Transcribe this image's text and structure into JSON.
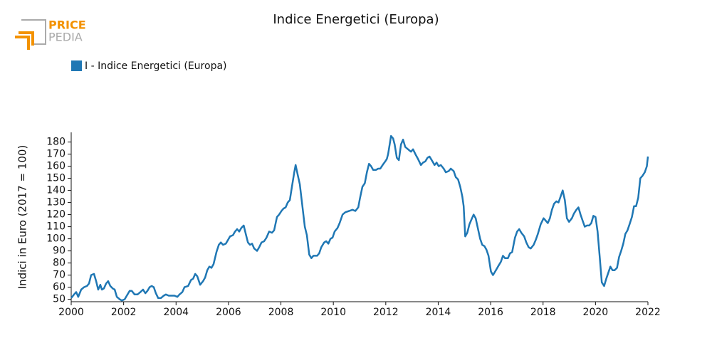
{
  "logo": {
    "top": "PRICE",
    "bottom": "PEDIA"
  },
  "chart_data": {
    "type": "line",
    "title": "Indice Energetici (Europa)",
    "y_label": "Indici in Euro (2017 = 100)",
    "legend": "top-left",
    "series": [
      {
        "name": "I - Indice Energetici (Europa)",
        "color": "#1f77b4",
        "x": [
          2000,
          2000.11,
          2000.19,
          2000.27,
          2000.38,
          2000.49,
          2000.6,
          2000.68,
          2000.76,
          2000.87,
          2000.95,
          2001.03,
          2001.11,
          2001.17,
          2001.25,
          2001.33,
          2001.41,
          2001.49,
          2001.58,
          2001.66,
          2001.74,
          2001.85,
          2001.93,
          2002.04,
          2002.12,
          2002.23,
          2002.31,
          2002.42,
          2002.53,
          2002.64,
          2002.74,
          2002.83,
          2002.91,
          2002.99,
          2003.07,
          2003.15,
          2003.23,
          2003.32,
          2003.42,
          2003.53,
          2003.61,
          2003.72,
          2003.83,
          2003.94,
          2004.05,
          2004.13,
          2004.24,
          2004.32,
          2004.46,
          2004.57,
          2004.65,
          2004.73,
          2004.81,
          2004.92,
          2005.03,
          2005.11,
          2005.19,
          2005.27,
          2005.35,
          2005.43,
          2005.54,
          2005.63,
          2005.71,
          2005.79,
          2005.9,
          2005.98,
          2006.06,
          2006.17,
          2006.25,
          2006.33,
          2006.41,
          2006.49,
          2006.58,
          2006.66,
          2006.74,
          2006.82,
          2006.9,
          2006.98,
          2007.09,
          2007.17,
          2007.26,
          2007.36,
          2007.45,
          2007.55,
          2007.66,
          2007.74,
          2007.85,
          2007.93,
          2008.02,
          2008.1,
          2008.18,
          2008.26,
          2008.34,
          2008.42,
          2008.51,
          2008.56,
          2008.64,
          2008.72,
          2008.83,
          2008.91,
          2008.99,
          2009.08,
          2009.16,
          2009.24,
          2009.38,
          2009.46,
          2009.54,
          2009.65,
          2009.73,
          2009.81,
          2009.89,
          2009.97,
          2010.05,
          2010.16,
          2010.24,
          2010.35,
          2010.46,
          2010.6,
          2010.73,
          2010.84,
          2010.95,
          2011.01,
          2011.11,
          2011.2,
          2011.28,
          2011.36,
          2011.44,
          2011.52,
          2011.63,
          2011.71,
          2011.79,
          2011.88,
          2011.98,
          2012.04,
          2012.09,
          2012.15,
          2012.2,
          2012.28,
          2012.34,
          2012.42,
          2012.5,
          2012.58,
          2012.66,
          2012.74,
          2012.85,
          2012.96,
          2013.04,
          2013.13,
          2013.23,
          2013.34,
          2013.42,
          2013.51,
          2013.59,
          2013.67,
          2013.78,
          2013.86,
          2013.94,
          2014.02,
          2014.1,
          2014.21,
          2014.29,
          2014.4,
          2014.48,
          2014.59,
          2014.67,
          2014.76,
          2014.84,
          2014.92,
          2014.97,
          2015.03,
          2015.11,
          2015.19,
          2015.27,
          2015.35,
          2015.43,
          2015.52,
          2015.6,
          2015.68,
          2015.76,
          2015.84,
          2015.92,
          2016.01,
          2016.09,
          2016.2,
          2016.28,
          2016.39,
          2016.47,
          2016.55,
          2016.66,
          2016.74,
          2016.82,
          2016.93,
          2017.01,
          2017.09,
          2017.17,
          2017.28,
          2017.36,
          2017.45,
          2017.53,
          2017.64,
          2017.72,
          2017.8,
          2017.91,
          2018.02,
          2018.1,
          2018.18,
          2018.26,
          2018.34,
          2018.42,
          2018.51,
          2018.59,
          2018.67,
          2018.75,
          2018.83,
          2018.91,
          2018.99,
          2019.1,
          2019.18,
          2019.27,
          2019.35,
          2019.43,
          2019.51,
          2019.59,
          2019.67,
          2019.76,
          2019.84,
          2019.92,
          2020.0,
          2020.08,
          2020.16,
          2020.24,
          2020.33,
          2020.41,
          2020.49,
          2020.57,
          2020.65,
          2020.73,
          2020.82,
          2020.9,
          2020.98,
          2021.06,
          2021.14,
          2021.22,
          2021.3,
          2021.39,
          2021.47,
          2021.55,
          2021.63,
          2021.71,
          2021.79,
          2021.88,
          2021.96,
          2022
        ],
        "values": [
          51,
          54,
          56,
          52,
          58,
          60,
          61,
          63,
          70,
          71,
          65,
          58,
          62,
          58,
          59,
          63,
          65,
          61,
          59,
          58,
          52,
          50,
          49,
          50,
          53,
          57,
          57,
          54,
          54,
          56,
          58,
          55,
          57,
          60,
          61,
          60,
          55,
          51,
          51,
          53,
          54,
          53,
          53,
          53,
          52,
          54,
          56,
          60,
          61,
          66,
          67,
          71,
          69,
          62,
          65,
          68,
          74,
          77,
          76,
          79,
          89,
          95,
          97,
          95,
          96,
          99,
          102,
          103,
          106,
          108,
          106,
          109,
          111,
          104,
          97,
          95,
          96,
          92,
          90,
          93,
          97,
          98,
          101,
          106,
          105,
          107,
          118,
          120,
          123,
          125,
          126,
          130,
          132,
          143,
          155,
          161,
          153,
          145,
          125,
          110,
          103,
          87,
          84,
          86,
          86,
          88,
          93,
          97,
          98,
          96,
          100,
          101,
          106,
          109,
          113,
          120,
          122,
          123,
          124,
          123,
          126,
          133,
          143,
          146,
          155,
          162,
          160,
          157,
          157,
          158,
          158,
          161,
          164,
          166,
          170,
          178,
          185,
          183,
          178,
          167,
          165,
          178,
          182,
          176,
          174,
          172,
          174,
          170,
          166,
          161,
          163,
          164,
          167,
          168,
          164,
          161,
          163,
          160,
          161,
          158,
          155,
          156,
          158,
          156,
          151,
          149,
          143,
          135,
          127,
          102,
          105,
          112,
          116,
          120,
          117,
          108,
          100,
          95,
          94,
          91,
          86,
          73,
          70,
          74,
          77,
          81,
          86,
          84,
          84,
          88,
          89,
          101,
          106,
          108,
          105,
          102,
          97,
          93,
          92,
          95,
          99,
          104,
          112,
          117,
          115,
          113,
          117,
          124,
          129,
          131,
          130,
          135,
          140,
          132,
          117,
          114,
          117,
          121,
          124,
          126,
          120,
          115,
          110,
          111,
          111,
          113,
          119,
          118,
          106,
          85,
          64,
          61,
          67,
          72,
          77,
          74,
          74,
          76,
          85,
          90,
          96,
          104,
          107,
          112,
          118,
          127,
          127,
          134,
          150,
          152,
          155,
          160,
          168
        ]
      }
    ],
    "xlim": [
      2000,
      2022
    ],
    "xticks": [
      2000,
      2002,
      2004,
      2006,
      2008,
      2010,
      2012,
      2014,
      2016,
      2018,
      2020,
      2022
    ],
    "ylim": [
      48,
      188
    ],
    "yticks": [
      50,
      60,
      70,
      80,
      90,
      100,
      110,
      120,
      130,
      140,
      150,
      160,
      170,
      180
    ]
  }
}
